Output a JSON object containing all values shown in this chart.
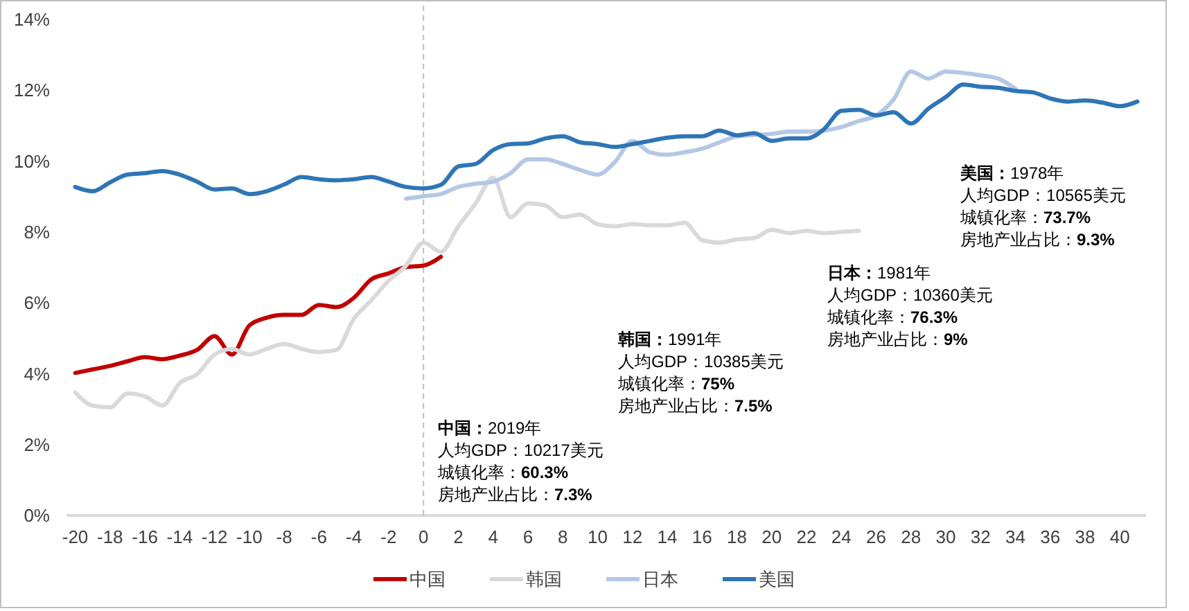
{
  "chart_data": {
    "type": "line",
    "xlim": [
      -20.5,
      41.5
    ],
    "xticks": [
      -20,
      -18,
      -16,
      -14,
      -12,
      -10,
      -8,
      -6,
      -4,
      -2,
      0,
      2,
      4,
      6,
      8,
      10,
      12,
      14,
      16,
      18,
      20,
      22,
      24,
      26,
      28,
      30,
      32,
      34,
      36,
      38,
      40
    ],
    "ylim": [
      0,
      14
    ],
    "yticks": [
      {
        "value": 0,
        "label": "0%"
      },
      {
        "value": 2,
        "label": "2%"
      },
      {
        "value": 4,
        "label": "4%"
      },
      {
        "value": 6,
        "label": "6%"
      },
      {
        "value": 8,
        "label": "8%"
      },
      {
        "value": 10,
        "label": "10%"
      },
      {
        "value": 12,
        "label": "12%"
      },
      {
        "value": 14,
        "label": "14%"
      }
    ],
    "grid": false,
    "legend": "bottom",
    "marker": "none",
    "line_style": "solid",
    "ref_lines": [
      {
        "axis": "x",
        "value": 0,
        "label": null,
        "color": "#bfbfbf",
        "line_style": "dashed"
      }
    ],
    "series": [
      {
        "name": "中国",
        "color": "#c00000",
        "x": [
          -20,
          -19,
          -18,
          -17,
          -16,
          -15,
          -14,
          -13,
          -12,
          -11,
          -10,
          -9,
          -8,
          -7,
          -6,
          -5,
          -4,
          -3,
          -2,
          -1,
          0,
          1
        ],
        "values": [
          4.02,
          4.12,
          4.22,
          4.35,
          4.47,
          4.41,
          4.51,
          4.67,
          5.06,
          4.54,
          5.36,
          5.58,
          5.66,
          5.66,
          5.94,
          5.88,
          6.14,
          6.66,
          6.83,
          7.01,
          7.05,
          7.3
        ]
      },
      {
        "name": "韩国",
        "color": "#d9d9d9",
        "x": [
          -20,
          -19,
          -18,
          -17,
          -16,
          -15,
          -14,
          -13,
          -12,
          -11,
          -10,
          -9,
          -8,
          -7,
          -6,
          -5,
          -4,
          -3,
          -2,
          -1,
          0,
          1,
          2,
          3,
          4,
          5,
          6,
          7,
          8,
          9,
          10,
          11,
          12,
          13,
          14,
          15,
          16,
          17,
          18,
          19,
          20,
          21,
          22,
          23,
          24,
          25
        ],
        "values": [
          3.47,
          3.1,
          3.05,
          3.44,
          3.36,
          3.1,
          3.73,
          3.99,
          4.54,
          4.7,
          4.54,
          4.7,
          4.84,
          4.7,
          4.61,
          4.67,
          5.55,
          6.07,
          6.62,
          7.05,
          7.7,
          7.44,
          8.16,
          8.81,
          9.53,
          8.42,
          8.81,
          8.75,
          8.42,
          8.49,
          8.22,
          8.16,
          8.22,
          8.19,
          8.19,
          8.26,
          7.77,
          7.7,
          7.79,
          7.83,
          8.06,
          7.97,
          8.03,
          7.97,
          8.0,
          8.03
        ]
      },
      {
        "name": "日本",
        "color": "#b4c7e7",
        "x": [
          -1,
          0,
          1,
          2,
          3,
          4,
          5,
          6,
          7,
          8,
          9,
          10,
          11,
          12,
          13,
          14,
          15,
          16,
          17,
          18,
          19,
          20,
          21,
          22,
          23,
          24,
          25,
          26,
          27,
          28,
          29,
          30,
          31,
          32,
          33,
          34
        ],
        "values": [
          8.94,
          9.01,
          9.07,
          9.27,
          9.36,
          9.42,
          9.66,
          10.05,
          10.05,
          9.92,
          9.75,
          9.62,
          9.98,
          10.57,
          10.25,
          10.18,
          10.25,
          10.35,
          10.53,
          10.7,
          10.74,
          10.77,
          10.83,
          10.83,
          10.86,
          10.96,
          11.13,
          11.29,
          11.74,
          12.53,
          12.33,
          12.53,
          12.49,
          12.42,
          12.33,
          12.04
        ]
      },
      {
        "name": "美国",
        "color": "#2e75b6",
        "x": [
          -20,
          -19,
          -18,
          -17,
          -16,
          -15,
          -14,
          -13,
          -12,
          -11,
          -10,
          -9,
          -8,
          -7,
          -6,
          -5,
          -4,
          -3,
          -2,
          -1,
          0,
          1,
          2,
          3,
          4,
          5,
          6,
          7,
          8,
          9,
          10,
          11,
          12,
          13,
          14,
          15,
          16,
          17,
          18,
          19,
          20,
          21,
          22,
          23,
          24,
          25,
          26,
          27,
          28,
          29,
          30,
          31,
          32,
          33,
          34,
          35,
          36,
          37,
          38,
          39,
          40,
          41
        ],
        "values": [
          9.27,
          9.15,
          9.4,
          9.62,
          9.66,
          9.72,
          9.62,
          9.42,
          9.2,
          9.23,
          9.07,
          9.15,
          9.34,
          9.55,
          9.49,
          9.46,
          9.49,
          9.55,
          9.42,
          9.27,
          9.23,
          9.33,
          9.85,
          9.92,
          10.31,
          10.48,
          10.5,
          10.64,
          10.7,
          10.53,
          10.48,
          10.4,
          10.48,
          10.57,
          10.66,
          10.7,
          10.7,
          10.86,
          10.73,
          10.79,
          10.57,
          10.64,
          10.64,
          10.9,
          11.42,
          11.45,
          11.29,
          11.38,
          11.06,
          11.48,
          11.81,
          12.16,
          12.1,
          12.07,
          11.98,
          11.94,
          11.77,
          11.68,
          11.71,
          11.65,
          11.55,
          11.68
        ]
      }
    ],
    "annotations": [
      "中国：2019年",
      "人均GDP：10217美元",
      "城镇化率：60.3%",
      "房地产业占比：7.3%",
      "韩国：1991年",
      "人均GDP：10385美元",
      "城镇化率：75%",
      "房地产业占比：7.5%",
      "日本：1981年",
      "人均GDP：10360美元",
      "城镇化率：76.3%",
      "房地产业占比：9%",
      "美国：1978年",
      "人均GDP：10565美元",
      "城镇化率：73.7%",
      "房地产业占比：9.3%"
    ]
  }
}
